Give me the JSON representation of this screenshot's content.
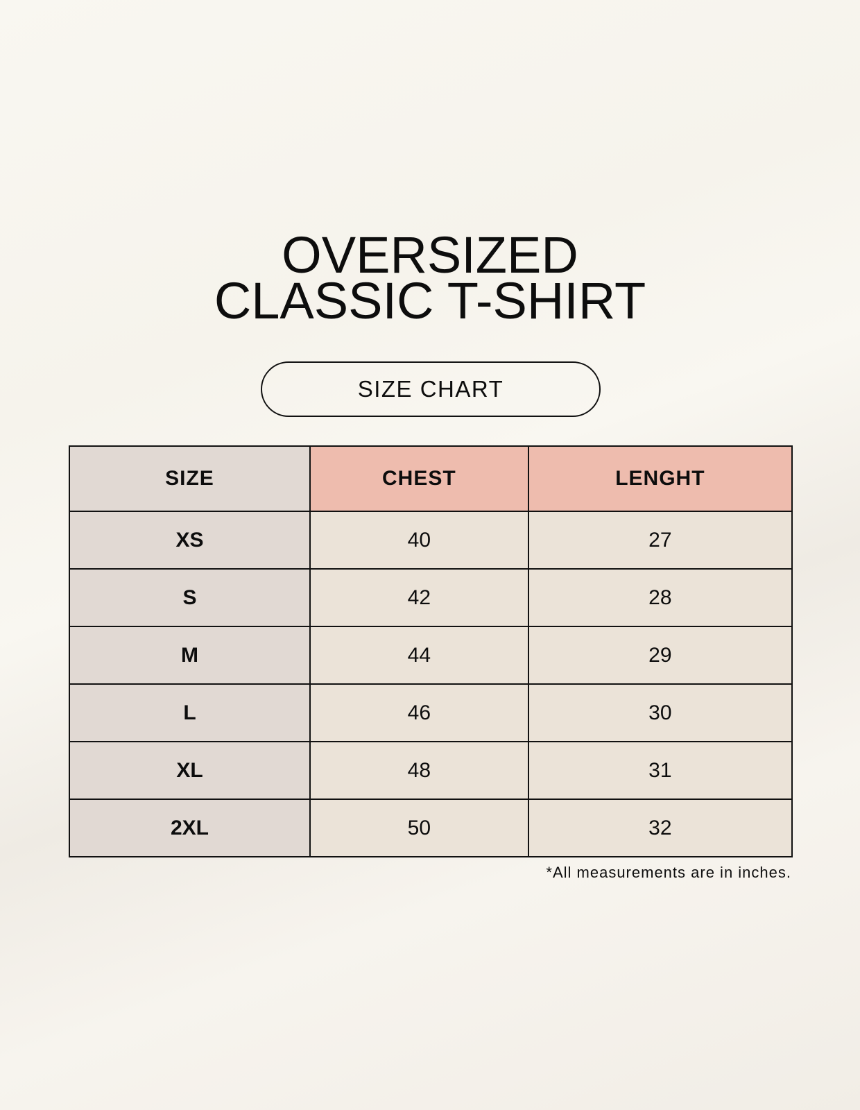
{
  "title": {
    "line1": "OVERSIZED",
    "line2": "CLASSIC T-SHIRT"
  },
  "badge": "SIZE CHART",
  "table": {
    "headers": [
      "SIZE",
      "CHEST",
      "LENGHT"
    ],
    "rows": [
      [
        "XS",
        "40",
        "27"
      ],
      [
        "S",
        "42",
        "28"
      ],
      [
        "M",
        "44",
        "29"
      ],
      [
        "L",
        "46",
        "30"
      ],
      [
        "XL",
        "48",
        "31"
      ],
      [
        "2XL",
        "50",
        "32"
      ]
    ]
  },
  "footnote": "*All measurements are in inches.",
  "colors": {
    "size_column": "#e1d9d3",
    "header_accent": "#eebcae",
    "value_cells": "#ebe3d8"
  }
}
